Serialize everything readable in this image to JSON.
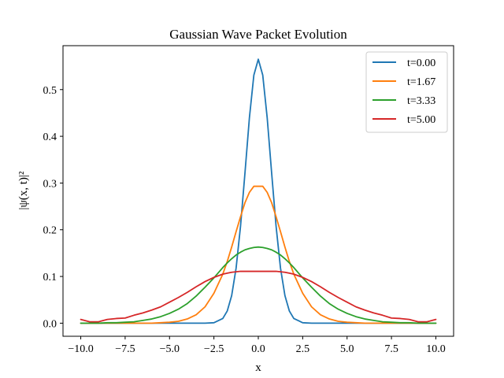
{
  "chart_data": {
    "type": "line",
    "title": "Gaussian Wave Packet Evolution",
    "xlabel": "x",
    "ylabel": "|ψ(x, t)|²",
    "xlim": [
      -11.0,
      11.0
    ],
    "ylim": [
      -0.028,
      0.594
    ],
    "x_ticks": [
      -10.0,
      -7.5,
      -5.0,
      -2.5,
      0.0,
      2.5,
      5.0,
      7.5,
      10.0
    ],
    "x_tick_labels": [
      "−10.0",
      "−7.5",
      "−5.0",
      "−2.5",
      "0.0",
      "2.5",
      "5.0",
      "7.5",
      "10.0"
    ],
    "y_ticks": [
      0.0,
      0.1,
      0.2,
      0.3,
      0.4,
      0.5
    ],
    "y_tick_labels": [
      "0.0",
      "0.1",
      "0.2",
      "0.3",
      "0.4",
      "0.5"
    ],
    "grid": false,
    "legend_position": "top-right",
    "x": [
      -10,
      -9.5,
      -9,
      -8.5,
      -8,
      -7.5,
      -7,
      -6.5,
      -6,
      -5.5,
      -5,
      -4.5,
      -4,
      -3.5,
      -3,
      -2.5,
      -2,
      -1.75,
      -1.5,
      -1.25,
      -1,
      -0.75,
      -0.5,
      -0.25,
      0,
      0.25,
      0.5,
      0.75,
      1,
      1.25,
      1.5,
      1.75,
      2,
      2.5,
      3,
      3.5,
      4,
      4.5,
      5,
      5.5,
      6,
      6.5,
      7,
      7.5,
      8,
      8.5,
      9,
      9.5,
      10
    ],
    "series": [
      {
        "name": "t=0.00",
        "color": "#1f77b4",
        "values": [
          0,
          0,
          0,
          0,
          0,
          0,
          0,
          0,
          0,
          0,
          0,
          0,
          0,
          0,
          0,
          0.001,
          0.01,
          0.026,
          0.059,
          0.118,
          0.208,
          0.322,
          0.44,
          0.531,
          0.565,
          0.531,
          0.44,
          0.322,
          0.208,
          0.118,
          0.059,
          0.026,
          0.01,
          0.001,
          0,
          0,
          0,
          0,
          0,
          0,
          0,
          0,
          0,
          0,
          0,
          0,
          0,
          0,
          0
        ]
      },
      {
        "name": "t=1.67",
        "color": "#ff7f0e",
        "values": [
          0,
          0,
          0,
          0,
          0,
          0,
          0,
          0,
          0,
          0.001,
          0.002,
          0.004,
          0.009,
          0.018,
          0.035,
          0.064,
          0.105,
          0.132,
          0.163,
          0.196,
          0.228,
          0.258,
          0.28,
          0.293,
          0.293,
          0.293,
          0.28,
          0.258,
          0.228,
          0.196,
          0.163,
          0.132,
          0.105,
          0.064,
          0.035,
          0.018,
          0.009,
          0.004,
          0.002,
          0.001,
          0,
          0,
          0,
          0,
          0,
          0,
          0,
          0,
          0
        ]
      },
      {
        "name": "t=3.33",
        "color": "#2ca02c",
        "values": [
          0,
          0,
          0,
          0.001,
          0.001,
          0.002,
          0.003,
          0.006,
          0.009,
          0.014,
          0.021,
          0.03,
          0.042,
          0.058,
          0.077,
          0.097,
          0.119,
          0.129,
          0.138,
          0.146,
          0.152,
          0.157,
          0.16,
          0.162,
          0.163,
          0.162,
          0.16,
          0.157,
          0.152,
          0.146,
          0.138,
          0.129,
          0.119,
          0.097,
          0.077,
          0.058,
          0.042,
          0.03,
          0.021,
          0.014,
          0.009,
          0.006,
          0.003,
          0.002,
          0.001,
          0.001,
          0,
          0,
          0
        ]
      },
      {
        "name": "t=5.00",
        "color": "#d62728",
        "values": [
          0.008,
          0.003,
          0.003,
          0.008,
          0.01,
          0.011,
          0.017,
          0.022,
          0.028,
          0.035,
          0.045,
          0.055,
          0.066,
          0.078,
          0.089,
          0.098,
          0.105,
          0.107,
          0.109,
          0.11,
          0.111,
          0.111,
          0.111,
          0.111,
          0.111,
          0.111,
          0.111,
          0.111,
          0.111,
          0.11,
          0.109,
          0.107,
          0.105,
          0.098,
          0.089,
          0.078,
          0.066,
          0.055,
          0.045,
          0.035,
          0.028,
          0.022,
          0.017,
          0.011,
          0.01,
          0.008,
          0.003,
          0.003,
          0.008
        ]
      }
    ]
  }
}
